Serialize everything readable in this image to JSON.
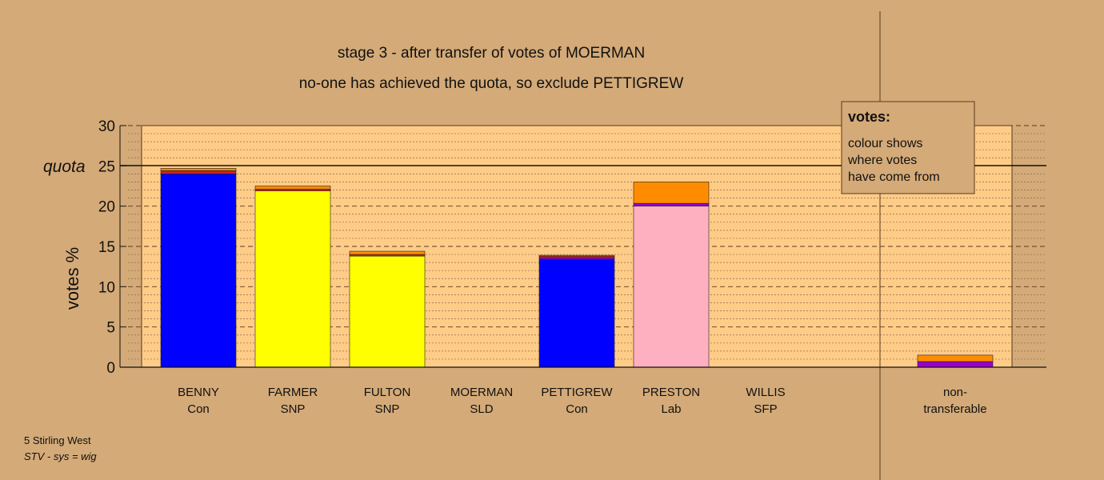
{
  "chart_data": {
    "type": "bar",
    "stacked": true,
    "title": "stage 3 - after transfer of votes of MOERMAN",
    "subtitle": "no-one has achieved the quota, so exclude PETTIGREW",
    "ylabel": "votes %",
    "ylim": [
      0,
      30
    ],
    "yticks": [
      0,
      5,
      10,
      15,
      20,
      25,
      30
    ],
    "quota": 25,
    "quota_label": "quota",
    "grid": true,
    "categories": [
      {
        "name": "BENNY",
        "party": "Con"
      },
      {
        "name": "FARMER",
        "party": "SNP"
      },
      {
        "name": "FULTON",
        "party": "SNP"
      },
      {
        "name": "MOERMAN",
        "party": "SLD"
      },
      {
        "name": "PETTIGREW",
        "party": "Con"
      },
      {
        "name": "PRESTON",
        "party": "Lab"
      },
      {
        "name": "WILLIS",
        "party": "SFP"
      },
      {
        "name": "non-",
        "party": "transferable"
      }
    ],
    "segments": [
      [
        {
          "value": 24.0,
          "color": "#0000ff"
        },
        {
          "value": 0.4,
          "color": "#cc2222"
        },
        {
          "value": 0.3,
          "color": "#ff8c00"
        }
      ],
      [
        {
          "value": 21.9,
          "color": "#ffff00"
        },
        {
          "value": 0.2,
          "color": "#cc2222"
        },
        {
          "value": 0.4,
          "color": "#ff8c00"
        }
      ],
      [
        {
          "value": 13.8,
          "color": "#ffff00"
        },
        {
          "value": 0.2,
          "color": "#cc2222"
        },
        {
          "value": 0.4,
          "color": "#ff8c00"
        }
      ],
      [],
      [
        {
          "value": 13.4,
          "color": "#0000ff"
        },
        {
          "value": 0.2,
          "color": "#9900cc"
        },
        {
          "value": 0.2,
          "color": "#cc2222"
        },
        {
          "value": 0.1,
          "color": "#ff8c00"
        }
      ],
      [
        {
          "value": 20.0,
          "color": "#ffb0c0"
        },
        {
          "value": 0.35,
          "color": "#9900cc"
        },
        {
          "value": 2.65,
          "color": "#ff8c00"
        }
      ],
      [],
      [
        {
          "value": 0.7,
          "color": "#9900cc"
        },
        {
          "value": 0.8,
          "color": "#ff8c00"
        }
      ]
    ],
    "totals": [
      24.7,
      22.5,
      14.4,
      0,
      13.9,
      23.0,
      0,
      1.5
    ]
  },
  "legend": {
    "heading": "votes:",
    "lines": [
      "colour shows",
      "where votes",
      "have come from"
    ]
  },
  "footer": {
    "constituency": "5 Stirling West",
    "system": "STV - sys = wig"
  },
  "colors": {
    "background": "#d4aa78",
    "plot_area": "#ffcc88",
    "axis": "#111111"
  }
}
